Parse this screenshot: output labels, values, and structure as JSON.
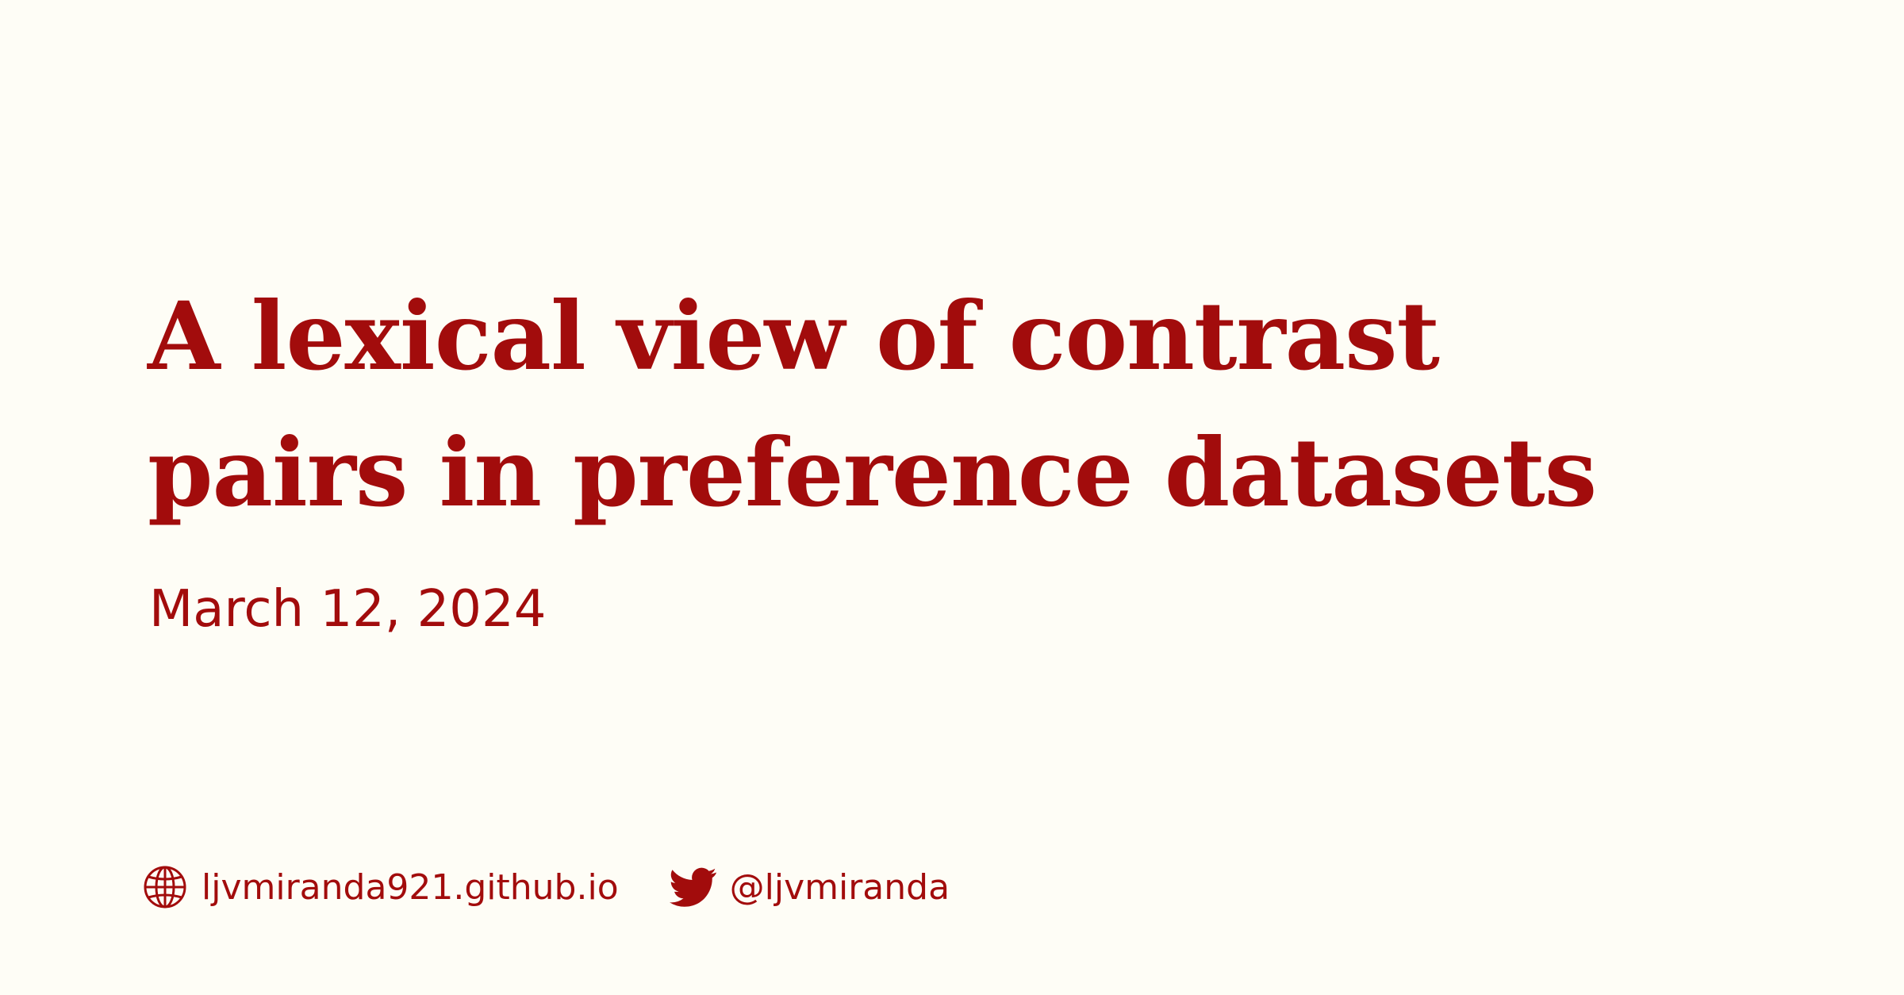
{
  "colors": {
    "background": "#fefdf6",
    "accent": "#a20c0c"
  },
  "post": {
    "title_lines": [
      "A lexical view of contrast",
      "pairs in preference datasets"
    ],
    "date": "March 12, 2024"
  },
  "footer": {
    "website": {
      "icon": "globe-icon",
      "text": "ljvmiranda921.github.io"
    },
    "twitter": {
      "icon": "twitter-bird-icon",
      "text": "@ljvmiranda"
    }
  }
}
